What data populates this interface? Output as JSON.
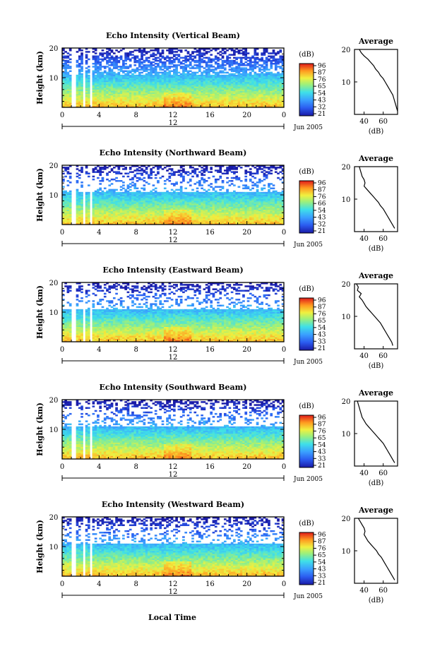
{
  "figure": {
    "xlabel": "Local Time",
    "date_label": "Jun 2005",
    "colorbar_unit": "(dB)",
    "colorbar_ticks": {
      "p1": [
        "96",
        "87",
        "76",
        "65",
        "54",
        "43",
        "32",
        "21"
      ],
      "p2": [
        "96",
        "87",
        "76",
        "66",
        "54",
        "43",
        "32",
        "21"
      ],
      "p3": [
        "96",
        "87",
        "76",
        "65",
        "54",
        "43",
        "33",
        "21"
      ],
      "p4": [
        "96",
        "87",
        "76",
        "65",
        "54",
        "43",
        "33",
        "21"
      ],
      "p5": [
        "96",
        "87",
        "76",
        "65",
        "54",
        "43",
        "33",
        "21"
      ]
    },
    "avg_title": "Average",
    "avg_xlabel": "(dB)"
  },
  "chart_data": [
    {
      "type": "heatmap",
      "title": "Echo Intensity (Vertical Beam)",
      "ylabel": "Height (km)",
      "xticks": [
        "0",
        "4",
        "8",
        "12",
        "16",
        "20",
        "0"
      ],
      "xticks_minor_label": "12",
      "yticks": [
        "10",
        "20"
      ],
      "ylim": [
        0,
        20
      ],
      "xlim": [
        0,
        24
      ],
      "colorbar_range": [
        21,
        96
      ],
      "average": {
        "title": "Average",
        "xticks": [
          "40",
          "60"
        ],
        "profile_db": [
          35,
          37,
          40,
          44,
          47,
          50,
          52,
          55,
          57,
          60,
          62,
          64,
          66,
          68,
          70,
          71,
          72,
          73,
          74,
          75
        ],
        "profile_height": [
          20,
          19,
          18,
          17,
          16,
          15,
          14,
          13,
          12,
          11,
          10,
          9,
          8,
          7,
          6,
          5,
          4,
          3,
          2,
          1
        ]
      }
    },
    {
      "type": "heatmap",
      "title": "Echo Intensity (Northward Beam)",
      "ylabel": "Height (km)",
      "xticks": [
        "0",
        "4",
        "8",
        "12",
        "16",
        "20",
        "0"
      ],
      "xticks_minor_label": "12",
      "yticks": [
        "10",
        "20"
      ],
      "ylim": [
        0,
        20
      ],
      "xlim": [
        0,
        24
      ],
      "colorbar_range": [
        21,
        96
      ],
      "average": {
        "title": "Average",
        "xticks": [
          "40",
          "60"
        ],
        "profile_db": [
          35,
          36,
          37,
          38,
          40,
          41,
          40,
          43,
          46,
          49,
          52,
          55,
          57,
          60,
          62,
          64,
          66,
          68,
          70,
          72
        ],
        "profile_height": [
          20,
          19,
          18,
          17,
          16,
          15,
          14,
          13,
          12,
          11,
          10,
          9,
          8,
          7,
          6,
          5,
          4,
          3,
          2,
          1
        ]
      }
    },
    {
      "type": "heatmap",
      "title": "Echo Intensity (Eastward Beam)",
      "ylabel": "Height (km)",
      "xticks": [
        "0",
        "4",
        "8",
        "12",
        "16",
        "20",
        "0"
      ],
      "xticks_minor_label": "12",
      "yticks": [
        "10",
        "20"
      ],
      "ylim": [
        0,
        20
      ],
      "xlim": [
        0,
        24
      ],
      "colorbar_range": [
        21,
        96
      ],
      "average": {
        "title": "Average",
        "xticks": [
          "40",
          "60"
        ],
        "profile_db": [
          32,
          34,
          33,
          37,
          35,
          38,
          40,
          42,
          45,
          48,
          51,
          54,
          57,
          59,
          61,
          63,
          65,
          67,
          69,
          70
        ],
        "profile_height": [
          20,
          19,
          18,
          17,
          16,
          15,
          14,
          13,
          12,
          11,
          10,
          9,
          8,
          7,
          6,
          5,
          4,
          3,
          2,
          1
        ]
      }
    },
    {
      "type": "heatmap",
      "title": "Echo Intensity (Southward Beam)",
      "ylabel": "Height (km)",
      "xticks": [
        "0",
        "4",
        "8",
        "12",
        "16",
        "20",
        "0"
      ],
      "xticks_minor_label": "12",
      "yticks": [
        "10",
        "20"
      ],
      "ylim": [
        0,
        20
      ],
      "xlim": [
        0,
        24
      ],
      "colorbar_range": [
        21,
        96
      ],
      "average": {
        "title": "Average",
        "xticks": [
          "40",
          "60"
        ],
        "profile_db": [
          33,
          34,
          35,
          36,
          37,
          38,
          40,
          42,
          45,
          48,
          51,
          54,
          57,
          60,
          62,
          64,
          66,
          68,
          70,
          72
        ],
        "profile_height": [
          20,
          19,
          18,
          17,
          16,
          15,
          14,
          13,
          12,
          11,
          10,
          9,
          8,
          7,
          6,
          5,
          4,
          3,
          2,
          1
        ]
      }
    },
    {
      "type": "heatmap",
      "title": "Echo Intensity (Westward Beam)",
      "ylabel": "Height (km)",
      "xticks": [
        "0",
        "4",
        "8",
        "12",
        "16",
        "20",
        "0"
      ],
      "xticks_minor_label": "12",
      "yticks": [
        "10",
        "20"
      ],
      "ylim": [
        0,
        20
      ],
      "xlim": [
        0,
        24
      ],
      "colorbar_range": [
        21,
        96
      ],
      "average": {
        "title": "Average",
        "xticks": [
          "40",
          "60"
        ],
        "profile_db": [
          34,
          36,
          38,
          40,
          41,
          40,
          42,
          44,
          47,
          50,
          53,
          55,
          58,
          60,
          62,
          64,
          66,
          68,
          70,
          72
        ],
        "profile_height": [
          20,
          19,
          18,
          17,
          16,
          15,
          14,
          13,
          12,
          11,
          10,
          9,
          8,
          7,
          6,
          5,
          4,
          3,
          2,
          1
        ]
      }
    }
  ]
}
